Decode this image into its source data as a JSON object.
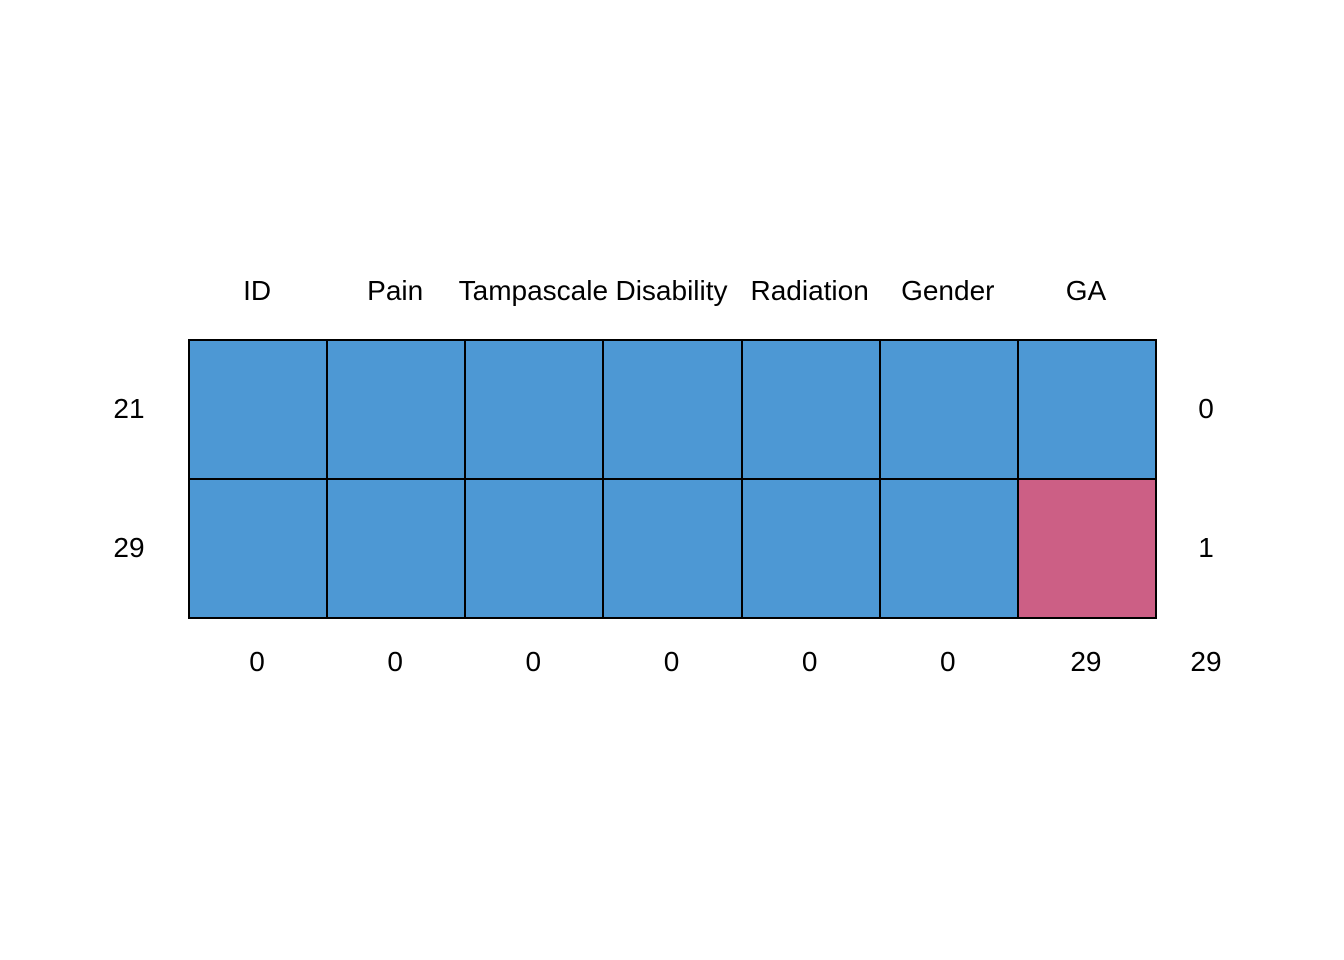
{
  "figure": {
    "background": "#FFFFFF",
    "description": "Missing data pattern plot"
  },
  "chart_data": {
    "type": "heatmap",
    "title": "",
    "xlabel": "",
    "ylabel": "",
    "columns": [
      "ID",
      "Pain",
      "Tampascale",
      "Disability",
      "Radiation",
      "Gender",
      "GA"
    ],
    "rows": [
      {
        "count": 21,
        "pattern": [
          1,
          1,
          1,
          1,
          1,
          1,
          1
        ],
        "n_missing": 0
      },
      {
        "count": 29,
        "pattern": [
          1,
          1,
          1,
          1,
          1,
          1,
          0
        ],
        "n_missing": 1
      }
    ],
    "column_missing": [
      0,
      0,
      0,
      0,
      0,
      0,
      29
    ],
    "total_missing": 29,
    "legend": {
      "observed_color": "#4D98D4",
      "missing_color": "#CC5F85"
    },
    "layout": {
      "grid_on": false,
      "legend_position": "none",
      "cell_border_color": "#000000",
      "text_color": "#000000"
    }
  }
}
